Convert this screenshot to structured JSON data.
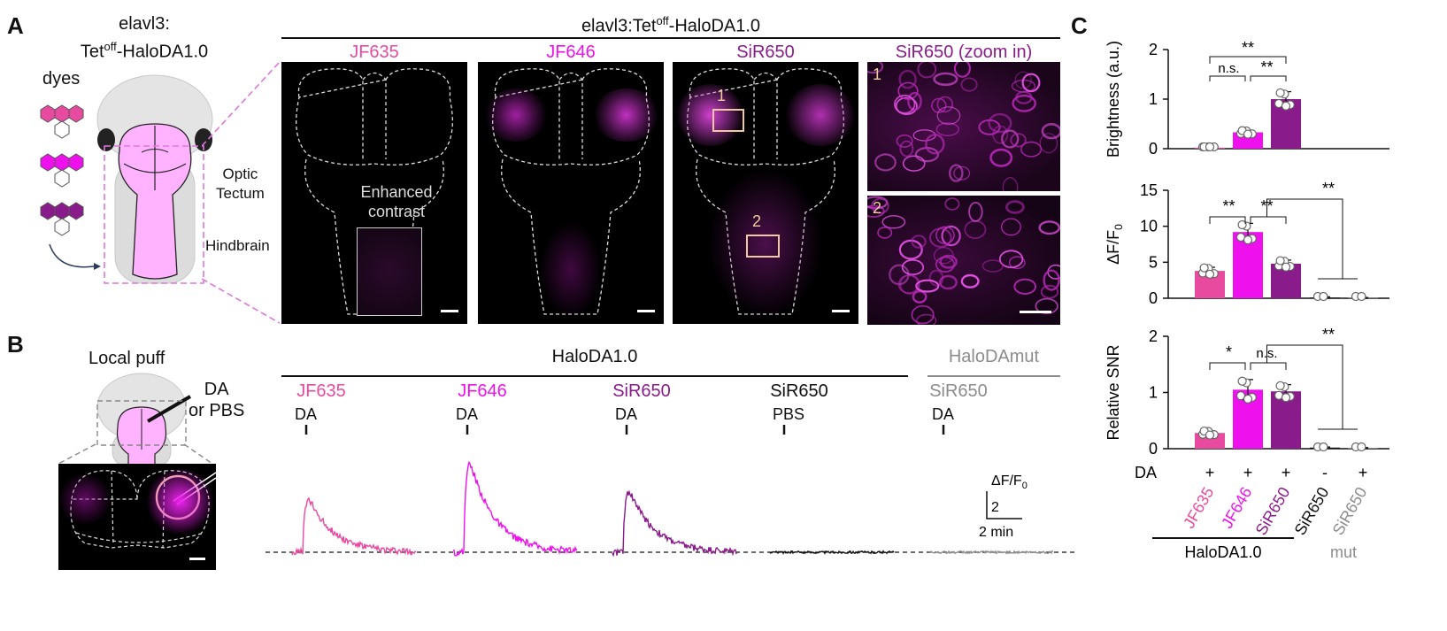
{
  "colors": {
    "jf635": "#e84aa0",
    "jf646": "#ee11ee",
    "sir650": "#8a1b8a",
    "black": "#111111",
    "gray": "#8c8c8c",
    "scalebox": "#f1c9a0"
  },
  "panelA": {
    "letter": "A",
    "construct_line1": "elavl3:",
    "construct_line2_pre": "Tet",
    "construct_line2_sup": "off",
    "construct_line2_post": "-HaloDA1.0",
    "dyes_label": "dyes",
    "optic_label_1": "Optic",
    "optic_label_2": "Tectum",
    "hindbrain_label": "Hindbrain",
    "header_pre": "elavl3:Tet",
    "header_sup": "off",
    "header_post": "-HaloDA1.0",
    "images": [
      {
        "label": "JF635"
      },
      {
        "label": "JF646"
      },
      {
        "label": "SiR650"
      },
      {
        "label": "SiR650 (zoom in)"
      }
    ],
    "enhanced_1": "Enhanced",
    "enhanced_2": "contrast",
    "roi_1": "1",
    "roi_2": "2"
  },
  "panelB": {
    "letter": "B",
    "local_puff": "Local puff",
    "stim_1": "DA",
    "stim_2": "or PBS",
    "group_halo": "HaloDA1.0",
    "group_mut": "HaloDAmut",
    "traces": [
      {
        "dye": "JF635",
        "stim": "DA",
        "peak": 3.6
      },
      {
        "dye": "JF646",
        "stim": "DA",
        "peak": 6.1
      },
      {
        "dye": "SiR650",
        "stim": "DA",
        "peak": 4.2
      },
      {
        "dye": "SiR650",
        "stim": "PBS",
        "peak": 0
      },
      {
        "dye": "SiR650",
        "stim": "DA",
        "peak": 0
      }
    ],
    "scale_y_pre": "ΔF/F",
    "scale_y_sub": "0",
    "scale_y_val": "2",
    "scale_x": "2 min"
  },
  "panelC": {
    "letter": "C",
    "chart_data": [
      {
        "type": "bar",
        "ylabel": "Brightness (a.u.)",
        "ylim": [
          0,
          2
        ],
        "yticks": [
          "0",
          "1",
          "2"
        ],
        "values": [
          0.02,
          0.33,
          1.0
        ],
        "errors": [
          0.02,
          0.04,
          0.15
        ],
        "sig": [
          "**",
          "n.s.",
          "**"
        ]
      },
      {
        "type": "bar",
        "ylabel_pre": "ΔF/F",
        "ylabel_sub": "0",
        "ylim": [
          0,
          15
        ],
        "yticks": [
          "0",
          "5",
          "10",
          "15"
        ],
        "values": [
          3.8,
          9.2,
          4.8,
          0.1,
          0.05
        ],
        "errors": [
          0.5,
          1.2,
          0.5,
          0.1,
          0.05
        ],
        "sig": [
          "**",
          "**",
          "**"
        ]
      },
      {
        "type": "bar",
        "ylabel": "Relative SNR",
        "ylim": [
          0,
          2
        ],
        "yticks": [
          "0",
          "1",
          "2"
        ],
        "values": [
          0.28,
          1.05,
          1.02,
          0.02,
          0.01
        ],
        "errors": [
          0.04,
          0.18,
          0.12,
          0.01,
          0.01
        ],
        "sig": [
          "*",
          "n.s.",
          "**"
        ]
      }
    ],
    "da_label": "DA",
    "da_signs": [
      "+",
      "+",
      "+",
      "-",
      "+"
    ],
    "categories": [
      "JF635",
      "JF646",
      "SiR650",
      "SiR650",
      "SiR650"
    ],
    "group_halo": "HaloDA1.0",
    "group_mut": "mut"
  }
}
